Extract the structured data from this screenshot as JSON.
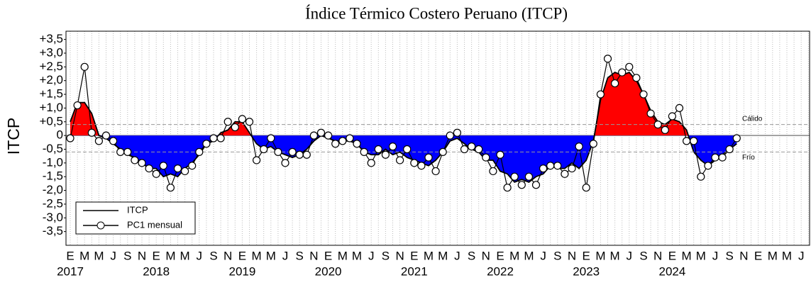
{
  "chart_data": {
    "type": "area-line",
    "title": "Índice Térmico Costero Peruano (ITCP)",
    "y_label": "ITCP",
    "categories": [
      "E",
      null,
      "M",
      null,
      "M",
      null,
      "J",
      null,
      "S",
      null,
      "N",
      null,
      "E",
      null,
      "M",
      null,
      "M",
      null,
      "J",
      null,
      "S",
      null,
      "N",
      null,
      "E",
      null,
      "M",
      null,
      "M",
      null,
      "J",
      null,
      "S",
      null,
      "N",
      null,
      "E",
      null,
      "M",
      null,
      "M",
      null,
      "J",
      null,
      "S",
      null,
      "N",
      null,
      "E",
      null,
      "M",
      null,
      "M",
      null,
      "J",
      null,
      "S",
      null,
      "N",
      null,
      "E",
      null,
      "M",
      null,
      "M",
      null,
      "J",
      null,
      "S",
      null,
      "N",
      null,
      "E",
      null,
      "M",
      null,
      "M",
      null,
      "J",
      null,
      "S",
      null,
      "N",
      null,
      "E",
      null,
      "M",
      null,
      "M",
      null,
      "J",
      null,
      "S",
      null,
      "N",
      null,
      "E",
      null,
      "M",
      null,
      "M",
      null,
      "J",
      null
    ],
    "years": [
      "2017",
      "2018",
      "2019",
      "2020",
      "2021",
      "2022",
      "2023",
      "2024"
    ],
    "series": [
      {
        "name": "ITCP",
        "color": "#000000",
        "positive_color": "#ff0000",
        "negative_color": "#0000ff",
        "marker": false,
        "values": [
          0.5,
          1.2,
          1.2,
          0.8,
          0.0,
          -0.1,
          -0.3,
          -0.5,
          -0.7,
          -0.8,
          -1.0,
          -1.2,
          -1.2,
          -1.5,
          -1.4,
          -1.5,
          -1.2,
          -1.0,
          -0.7,
          -0.3,
          -0.2,
          0.1,
          0.2,
          0.5,
          0.5,
          0.1,
          -0.3,
          -0.5,
          -0.4,
          -0.6,
          -0.7,
          -0.8,
          -0.7,
          -0.5,
          -0.2,
          0.0,
          -0.1,
          -0.2,
          -0.2,
          -0.2,
          -0.3,
          -0.6,
          -0.7,
          -0.7,
          -0.5,
          -0.7,
          -0.6,
          -0.8,
          -0.9,
          -1.0,
          -1.1,
          -0.9,
          -0.6,
          -0.2,
          -0.1,
          -0.3,
          -0.5,
          -0.6,
          -0.9,
          -0.9,
          -1.3,
          -1.4,
          -1.7,
          -1.6,
          -1.7,
          -1.5,
          -1.4,
          -1.1,
          -1.2,
          -1.2,
          -1.0,
          -1.2,
          -0.9,
          -0.2,
          1.3,
          2.1,
          2.3,
          2.2,
          2.3,
          2.0,
          1.5,
          0.9,
          0.5,
          0.4,
          0.6,
          0.5,
          0.2,
          -0.6,
          -0.9,
          -1.1,
          -0.9,
          -0.7,
          -0.5,
          -0.3,
          null,
          null,
          null,
          null,
          null,
          null,
          null,
          null,
          null,
          null
        ]
      },
      {
        "name": "PC1 mensual",
        "color": "#000000",
        "marker": true,
        "values": [
          -0.1,
          1.1,
          2.5,
          0.1,
          -0.2,
          0.0,
          -0.2,
          -0.6,
          -0.6,
          -0.9,
          -1.0,
          -1.2,
          -1.4,
          -1.1,
          -1.9,
          -1.2,
          -1.3,
          -1.1,
          -0.6,
          -0.3,
          -0.1,
          -0.1,
          0.5,
          0.3,
          0.6,
          0.5,
          -0.9,
          -0.5,
          -0.1,
          -0.6,
          -1.0,
          -0.6,
          -0.7,
          -0.7,
          0.0,
          0.1,
          0.0,
          -0.3,
          -0.2,
          -0.1,
          -0.3,
          -0.6,
          -1.0,
          -0.5,
          -0.7,
          -0.4,
          -0.9,
          -0.5,
          -1.0,
          -1.1,
          -0.8,
          -1.3,
          -0.6,
          0.0,
          0.1,
          -0.5,
          -0.4,
          -0.5,
          -0.8,
          -1.3,
          -0.7,
          -1.9,
          -1.5,
          -1.8,
          -1.5,
          -1.8,
          -1.2,
          -1.1,
          -1.1,
          -1.4,
          -1.2,
          -0.4,
          -1.9,
          -0.3,
          1.5,
          2.8,
          1.9,
          2.3,
          2.5,
          2.1,
          1.5,
          0.8,
          0.4,
          0.2,
          0.7,
          1.0,
          -0.2,
          -0.2,
          -1.5,
          -1.1,
          -0.8,
          -0.8,
          -0.5,
          -0.1,
          null,
          null,
          null,
          null,
          null,
          null,
          null,
          null,
          null,
          null
        ]
      }
    ],
    "thresholds": [
      {
        "label": "Cálido",
        "value": 0.4
      },
      {
        "label": "Frío",
        "value": -0.6
      }
    ],
    "ylim": [
      -4,
      3.8
    ],
    "yticks": [
      {
        "value": 3.5,
        "label": "+3,5"
      },
      {
        "value": 3,
        "label": "+3,0"
      },
      {
        "value": 2.5,
        "label": "+2,5"
      },
      {
        "value": 2,
        "label": "+2,0"
      },
      {
        "value": 1.5,
        "label": "+1,5"
      },
      {
        "value": 1,
        "label": "+1,0"
      },
      {
        "value": 0.5,
        "label": "+0,5"
      },
      0,
      {
        "value": -0.5,
        "label": "-0,5"
      },
      {
        "value": -1,
        "label": "-1,0"
      },
      {
        "value": -1.5,
        "label": "-1,5"
      },
      {
        "value": -2,
        "label": "-2,0"
      },
      {
        "value": -2.5,
        "label": "-2,5"
      },
      {
        "value": -3,
        "label": "-3,0"
      },
      {
        "value": -3.5,
        "label": "-3,5"
      }
    ],
    "grid": true,
    "legend": "lower left"
  }
}
